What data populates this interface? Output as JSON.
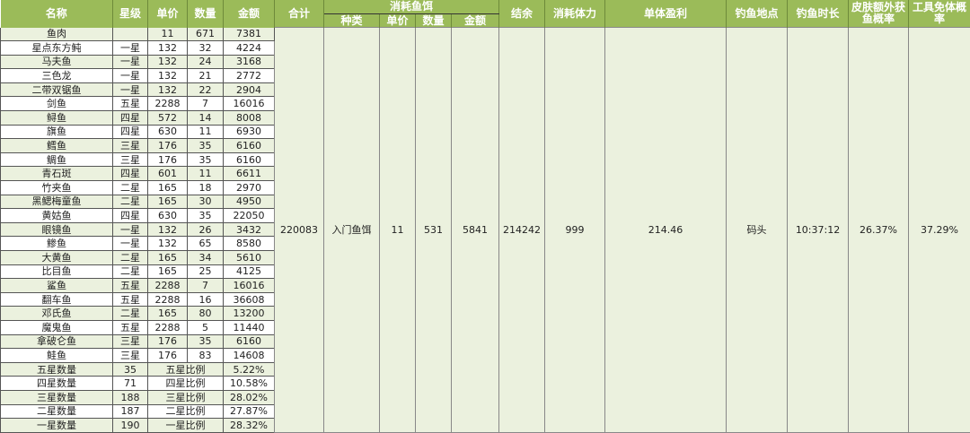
{
  "headers": {
    "name": "名称",
    "star": "星级",
    "price": "单价",
    "qty": "数量",
    "amount": "金额",
    "total": "合计",
    "bait_group": "消耗鱼饵",
    "bait_type": "种类",
    "bait_price": "单价",
    "bait_qty": "数量",
    "bait_amount": "金额",
    "balance": "结余",
    "stamina": "消耗体力",
    "unit_profit": "单体盈利",
    "location": "钓鱼地点",
    "duration": "钓鱼时长",
    "skin_rate": "皮肤额外获鱼概率",
    "tool_rate": "工具免体概率"
  },
  "fish": [
    [
      "鱼肉",
      "",
      "11",
      "671",
      "7381"
    ],
    [
      "星点东方鲀",
      "一星",
      "132",
      "32",
      "4224"
    ],
    [
      "马夫鱼",
      "一星",
      "132",
      "24",
      "3168"
    ],
    [
      "三色龙",
      "一星",
      "132",
      "21",
      "2772"
    ],
    [
      "二带双锯鱼",
      "一星",
      "132",
      "22",
      "2904"
    ],
    [
      "剑鱼",
      "五星",
      "2288",
      "7",
      "16016"
    ],
    [
      "鲟鱼",
      "四星",
      "572",
      "14",
      "8008"
    ],
    [
      "旗鱼",
      "四星",
      "630",
      "11",
      "6930"
    ],
    [
      "鳕鱼",
      "三星",
      "176",
      "35",
      "6160"
    ],
    [
      "鲷鱼",
      "三星",
      "176",
      "35",
      "6160"
    ],
    [
      "青石斑",
      "四星",
      "601",
      "11",
      "6611"
    ],
    [
      "竹夹鱼",
      "二星",
      "165",
      "18",
      "2970"
    ],
    [
      "黑鳃梅童鱼",
      "二星",
      "165",
      "30",
      "4950"
    ],
    [
      "黄姑鱼",
      "四星",
      "630",
      "35",
      "22050"
    ],
    [
      "眼镜鱼",
      "一星",
      "132",
      "26",
      "3432"
    ],
    [
      "鲹鱼",
      "一星",
      "132",
      "65",
      "8580"
    ],
    [
      "大黄鱼",
      "二星",
      "165",
      "34",
      "5610"
    ],
    [
      "比目鱼",
      "二星",
      "165",
      "25",
      "4125"
    ],
    [
      "鲨鱼",
      "五星",
      "2288",
      "7",
      "16016"
    ],
    [
      "翻车鱼",
      "五星",
      "2288",
      "16",
      "36608"
    ],
    [
      "邓氏鱼",
      "二星",
      "165",
      "80",
      "13200"
    ],
    [
      "魔鬼鱼",
      "五星",
      "2288",
      "5",
      "11440"
    ],
    [
      "拿破仑鱼",
      "三星",
      "176",
      "35",
      "6160"
    ],
    [
      "鲑鱼",
      "三星",
      "176",
      "83",
      "14608"
    ]
  ],
  "summary": [
    [
      "五星数量",
      "35",
      "五星比例",
      "5.22%"
    ],
    [
      "四星数量",
      "71",
      "四星比例",
      "10.58%"
    ],
    [
      "三星数量",
      "188",
      "三星比例",
      "28.02%"
    ],
    [
      "二星数量",
      "187",
      "二星比例",
      "27.87%"
    ],
    [
      "一星数量",
      "190",
      "一星比例",
      "28.32%"
    ]
  ],
  "merged": {
    "total": "220083",
    "bait_type": "入门鱼饵",
    "bait_price": "11",
    "bait_qty": "531",
    "bait_amount": "5841",
    "balance": "214242",
    "stamina": "999",
    "unit_profit": "214.46",
    "location": "码头",
    "duration": "10:37:12",
    "skin_rate": "26.37%",
    "tool_rate": "37.29%"
  },
  "colors": {
    "header": "#9bbb59",
    "row_alt": "#ebf1de"
  }
}
